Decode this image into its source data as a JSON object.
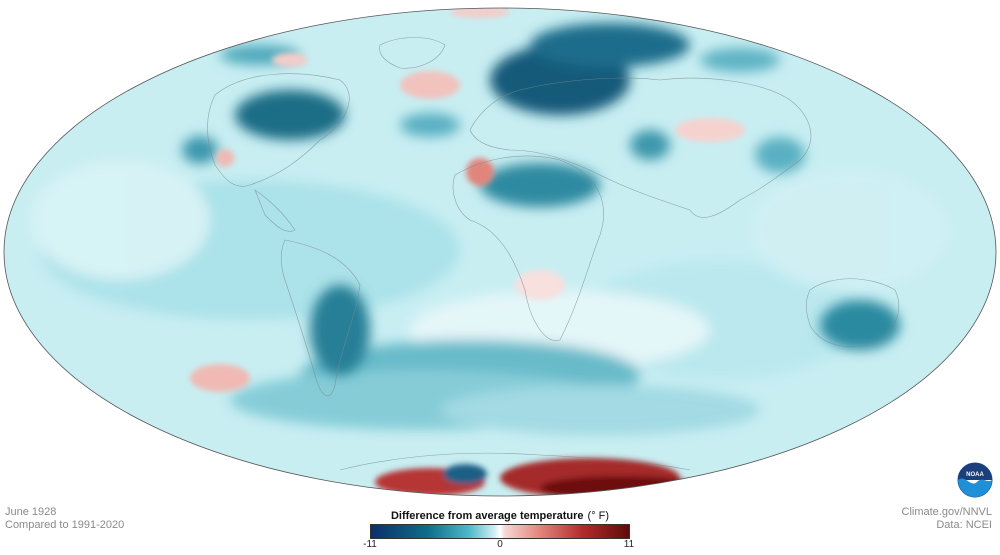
{
  "map": {
    "projection": "Hammer (elliptical world map)",
    "palette": {
      "cold_extreme": "#0b2f6b",
      "cold": "#127a90",
      "neutral": "#ffffff",
      "warm": "#e48780",
      "warm_extreme": "#5e0b0b"
    }
  },
  "date_label": "June 1928",
  "baseline_label": "Compared to 1991-2020",
  "credit": "Climate.gov/NNVL",
  "data_source": "Data: NCEI",
  "legend": {
    "title": "Difference from average temperature",
    "unit": "(° F)",
    "min_label": "-11",
    "mid_label": "0",
    "max_label": "11",
    "min_value": -11,
    "max_value": 11
  },
  "logo": {
    "name": "noaa-logo",
    "text": "NOAA"
  }
}
